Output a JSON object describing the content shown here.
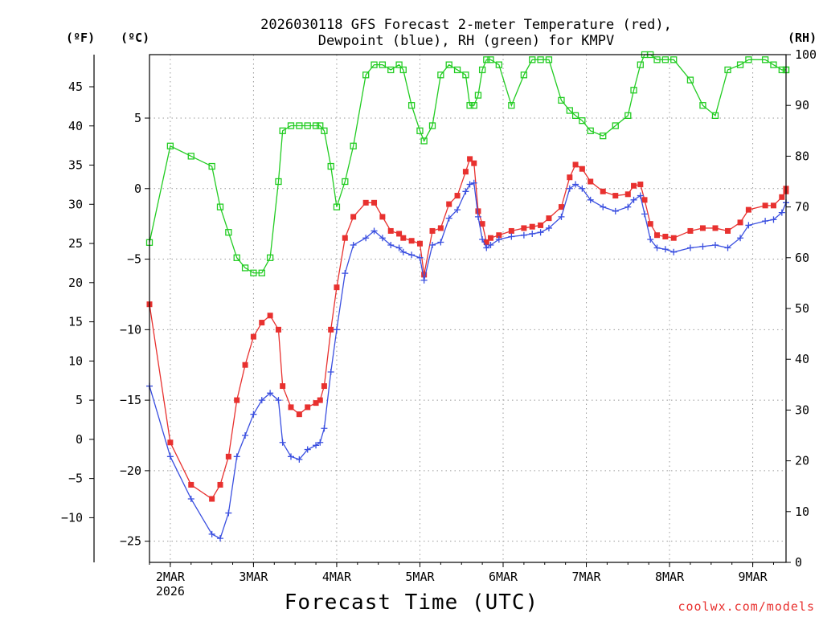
{
  "chart_data": {
    "type": "line",
    "title": [
      "2026030118 GFS Forecast 2-meter Temperature (red),",
      "Dewpoint (blue), RH (green) for KMPV"
    ],
    "xlabel": "Forecast Time (UTC)",
    "credit": "coolwx.com/models",
    "y_units": {
      "fahrenheit": "(ºF)",
      "celsius": "(ºC)",
      "rh": "(RH)"
    },
    "x_range_days": [
      0,
      7.65
    ],
    "x_ticks": [
      {
        "day": 0.25,
        "label": "2MAR",
        "sub": "2026"
      },
      {
        "day": 1.25,
        "label": "3MAR",
        "sub": ""
      },
      {
        "day": 2.25,
        "label": "4MAR",
        "sub": ""
      },
      {
        "day": 3.25,
        "label": "5MAR",
        "sub": ""
      },
      {
        "day": 4.25,
        "label": "6MAR",
        "sub": ""
      },
      {
        "day": 5.25,
        "label": "7MAR",
        "sub": ""
      },
      {
        "day": 6.25,
        "label": "8MAR",
        "sub": ""
      },
      {
        "day": 7.25,
        "label": "9MAR",
        "sub": ""
      }
    ],
    "celsius_axis": {
      "range": [
        -26.5,
        9.5
      ],
      "ticks": [
        5,
        0,
        -5,
        -10,
        -15,
        -20,
        -25
      ],
      "labels": [
        "5",
        "0",
        "−5",
        "−10",
        "−15",
        "−20",
        "−25"
      ]
    },
    "fahrenheit_axis": {
      "ticks": [
        45,
        40,
        35,
        30,
        25,
        20,
        15,
        10,
        5,
        0,
        -5,
        -10
      ],
      "labels": [
        "45",
        "40",
        "35",
        "30",
        "25",
        "20",
        "15",
        "10",
        "5",
        "0",
        "−5",
        "−10"
      ]
    },
    "rh_axis": {
      "range": [
        0,
        100
      ],
      "ticks": [
        100,
        90,
        80,
        70,
        60,
        50,
        40,
        30,
        20,
        10,
        0
      ],
      "labels": [
        "100",
        "90",
        "80",
        "70",
        "60",
        "50",
        "40",
        "30",
        "20",
        "10",
        "0"
      ]
    },
    "series": [
      {
        "name": "Temperature",
        "units": "C",
        "color": "#e8312f",
        "marker": "square",
        "points": [
          [
            0,
            -8.2
          ],
          [
            0.25,
            -18
          ],
          [
            0.5,
            -21
          ],
          [
            0.75,
            -22
          ],
          [
            0.85,
            -21
          ],
          [
            0.95,
            -19
          ],
          [
            1.05,
            -15
          ],
          [
            1.15,
            -12.5
          ],
          [
            1.25,
            -10.5
          ],
          [
            1.35,
            -9.5
          ],
          [
            1.45,
            -9
          ],
          [
            1.55,
            -10
          ],
          [
            1.6,
            -14
          ],
          [
            1.7,
            -15.5
          ],
          [
            1.8,
            -16
          ],
          [
            1.9,
            -15.5
          ],
          [
            2.0,
            -15.2
          ],
          [
            2.05,
            -15
          ],
          [
            2.1,
            -14
          ],
          [
            2.18,
            -10
          ],
          [
            2.25,
            -7
          ],
          [
            2.35,
            -3.5
          ],
          [
            2.45,
            -2
          ],
          [
            2.6,
            -1
          ],
          [
            2.7,
            -1
          ],
          [
            2.8,
            -2
          ],
          [
            2.9,
            -3
          ],
          [
            3.0,
            -3.2
          ],
          [
            3.05,
            -3.5
          ],
          [
            3.15,
            -3.7
          ],
          [
            3.25,
            -3.9
          ],
          [
            3.3,
            -6.1
          ],
          [
            3.4,
            -3
          ],
          [
            3.5,
            -2.8
          ],
          [
            3.6,
            -1.1
          ],
          [
            3.7,
            -0.5
          ],
          [
            3.8,
            1.2
          ],
          [
            3.85,
            2.1
          ],
          [
            3.9,
            1.8
          ],
          [
            3.95,
            -1.6
          ],
          [
            4.0,
            -2.5
          ],
          [
            4.05,
            -3.8
          ],
          [
            4.1,
            -3.5
          ],
          [
            4.2,
            -3.3
          ],
          [
            4.35,
            -3
          ],
          [
            4.5,
            -2.8
          ],
          [
            4.6,
            -2.7
          ],
          [
            4.7,
            -2.6
          ],
          [
            4.8,
            -2.1
          ],
          [
            4.95,
            -1.3
          ],
          [
            5.05,
            0.8
          ],
          [
            5.12,
            1.7
          ],
          [
            5.2,
            1.4
          ],
          [
            5.3,
            0.5
          ],
          [
            5.45,
            -0.2
          ],
          [
            5.6,
            -0.5
          ],
          [
            5.75,
            -0.4
          ],
          [
            5.82,
            0.2
          ],
          [
            5.9,
            0.3
          ],
          [
            5.95,
            -0.8
          ],
          [
            6.02,
            -2.5
          ],
          [
            6.1,
            -3.3
          ],
          [
            6.2,
            -3.4
          ],
          [
            6.3,
            -3.5
          ],
          [
            6.5,
            -3
          ],
          [
            6.65,
            -2.8
          ],
          [
            6.8,
            -2.8
          ],
          [
            6.95,
            -3
          ],
          [
            7.1,
            -2.4
          ],
          [
            7.2,
            -1.5
          ],
          [
            7.4,
            -1.2
          ],
          [
            7.5,
            -1.2
          ],
          [
            7.6,
            -0.6
          ],
          [
            7.65,
            -0.2
          ],
          [
            7.65,
            0
          ]
        ]
      },
      {
        "name": "Dewpoint",
        "units": "C",
        "color": "#3a4fe0",
        "marker": "plus",
        "points": [
          [
            0,
            -14
          ],
          [
            0.25,
            -19
          ],
          [
            0.5,
            -22
          ],
          [
            0.75,
            -24.5
          ],
          [
            0.85,
            -24.8
          ],
          [
            0.95,
            -23
          ],
          [
            1.05,
            -19
          ],
          [
            1.15,
            -17.5
          ],
          [
            1.25,
            -16
          ],
          [
            1.35,
            -15
          ],
          [
            1.45,
            -14.5
          ],
          [
            1.55,
            -15
          ],
          [
            1.6,
            -18
          ],
          [
            1.7,
            -19
          ],
          [
            1.8,
            -19.2
          ],
          [
            1.9,
            -18.5
          ],
          [
            2.0,
            -18.2
          ],
          [
            2.05,
            -18
          ],
          [
            2.1,
            -17
          ],
          [
            2.18,
            -13
          ],
          [
            2.25,
            -10
          ],
          [
            2.35,
            -6
          ],
          [
            2.45,
            -4
          ],
          [
            2.6,
            -3.5
          ],
          [
            2.7,
            -3
          ],
          [
            2.8,
            -3.5
          ],
          [
            2.9,
            -4
          ],
          [
            3.0,
            -4.2
          ],
          [
            3.05,
            -4.5
          ],
          [
            3.15,
            -4.7
          ],
          [
            3.25,
            -4.9
          ],
          [
            3.3,
            -6.5
          ],
          [
            3.4,
            -4
          ],
          [
            3.5,
            -3.8
          ],
          [
            3.6,
            -2.1
          ],
          [
            3.7,
            -1.5
          ],
          [
            3.8,
            -0.2
          ],
          [
            3.85,
            0.3
          ],
          [
            3.9,
            0.4
          ],
          [
            3.95,
            -2
          ],
          [
            4.0,
            -3.6
          ],
          [
            4.05,
            -4.2
          ],
          [
            4.1,
            -4
          ],
          [
            4.2,
            -3.6
          ],
          [
            4.35,
            -3.4
          ],
          [
            4.5,
            -3.3
          ],
          [
            4.6,
            -3.2
          ],
          [
            4.7,
            -3.1
          ],
          [
            4.8,
            -2.8
          ],
          [
            4.95,
            -2
          ],
          [
            5.05,
            0
          ],
          [
            5.12,
            0.3
          ],
          [
            5.2,
            0
          ],
          [
            5.3,
            -0.8
          ],
          [
            5.45,
            -1.3
          ],
          [
            5.6,
            -1.6
          ],
          [
            5.75,
            -1.3
          ],
          [
            5.82,
            -0.8
          ],
          [
            5.9,
            -0.5
          ],
          [
            5.95,
            -1.8
          ],
          [
            6.02,
            -3.6
          ],
          [
            6.1,
            -4.2
          ],
          [
            6.2,
            -4.3
          ],
          [
            6.3,
            -4.5
          ],
          [
            6.5,
            -4.2
          ],
          [
            6.65,
            -4.1
          ],
          [
            6.8,
            -4
          ],
          [
            6.95,
            -4.2
          ],
          [
            7.1,
            -3.5
          ],
          [
            7.2,
            -2.6
          ],
          [
            7.4,
            -2.3
          ],
          [
            7.5,
            -2.2
          ],
          [
            7.6,
            -1.7
          ],
          [
            7.65,
            -1
          ],
          [
            7.65,
            -1
          ]
        ]
      },
      {
        "name": "RH",
        "units": "%",
        "color": "#22cc22",
        "marker": "open-square",
        "points": [
          [
            0,
            63
          ],
          [
            0.25,
            82
          ],
          [
            0.5,
            80
          ],
          [
            0.75,
            78
          ],
          [
            0.85,
            70
          ],
          [
            0.95,
            65
          ],
          [
            1.05,
            60
          ],
          [
            1.15,
            58
          ],
          [
            1.25,
            57
          ],
          [
            1.35,
            57
          ],
          [
            1.45,
            60
          ],
          [
            1.55,
            75
          ],
          [
            1.6,
            85
          ],
          [
            1.7,
            86
          ],
          [
            1.8,
            86
          ],
          [
            1.9,
            86
          ],
          [
            2.0,
            86
          ],
          [
            2.05,
            86
          ],
          [
            2.1,
            85
          ],
          [
            2.18,
            78
          ],
          [
            2.25,
            70
          ],
          [
            2.35,
            75
          ],
          [
            2.45,
            82
          ],
          [
            2.6,
            96
          ],
          [
            2.7,
            98
          ],
          [
            2.8,
            98
          ],
          [
            2.9,
            97
          ],
          [
            3.0,
            98
          ],
          [
            3.05,
            97
          ],
          [
            3.15,
            90
          ],
          [
            3.25,
            85
          ],
          [
            3.3,
            83
          ],
          [
            3.4,
            86
          ],
          [
            3.5,
            96
          ],
          [
            3.6,
            98
          ],
          [
            3.7,
            97
          ],
          [
            3.8,
            96
          ],
          [
            3.85,
            90
          ],
          [
            3.9,
            90
          ],
          [
            3.95,
            92
          ],
          [
            4.0,
            97
          ],
          [
            4.05,
            99
          ],
          [
            4.1,
            99
          ],
          [
            4.2,
            98
          ],
          [
            4.35,
            90
          ],
          [
            4.5,
            96
          ],
          [
            4.6,
            99
          ],
          [
            4.7,
            99
          ],
          [
            4.8,
            99
          ],
          [
            4.95,
            91
          ],
          [
            5.05,
            89
          ],
          [
            5.12,
            88
          ],
          [
            5.2,
            87
          ],
          [
            5.3,
            85
          ],
          [
            5.45,
            84
          ],
          [
            5.6,
            86
          ],
          [
            5.75,
            88
          ],
          [
            5.82,
            93
          ],
          [
            5.9,
            98
          ],
          [
            5.95,
            100
          ],
          [
            6.02,
            100
          ],
          [
            6.1,
            99
          ],
          [
            6.2,
            99
          ],
          [
            6.3,
            99
          ],
          [
            6.5,
            95
          ],
          [
            6.65,
            90
          ],
          [
            6.8,
            88
          ],
          [
            6.95,
            97
          ],
          [
            7.1,
            98
          ],
          [
            7.2,
            99
          ],
          [
            7.4,
            99
          ],
          [
            7.5,
            98
          ],
          [
            7.6,
            97
          ],
          [
            7.65,
            97
          ],
          [
            7.65,
            97
          ]
        ]
      }
    ]
  }
}
